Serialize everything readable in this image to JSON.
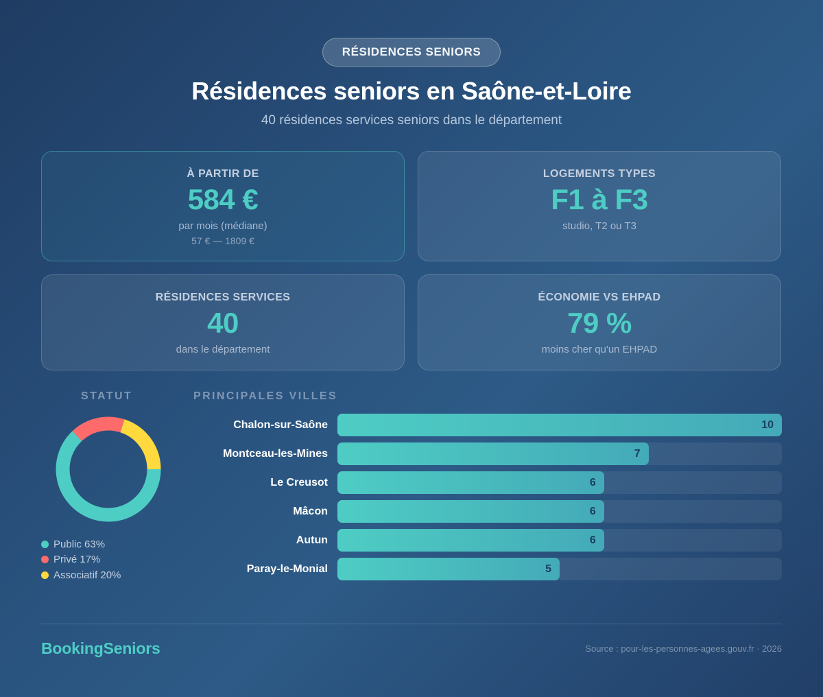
{
  "header": {
    "badge": "RÉSIDENCES SENIORS",
    "title": "Résidences seniors en Saône-et-Loire",
    "subtitle": "40 résidences services seniors dans le département"
  },
  "cards": [
    {
      "label": "À PARTIR DE",
      "value": "584 €",
      "sub": "par mois (médiane)",
      "sub2": "57 € — 1809 €"
    },
    {
      "label": "LOGEMENTS TYPES",
      "value": "F1 à F3",
      "sub": "studio, T2 ou T3"
    },
    {
      "label": "RÉSIDENCES SERVICES",
      "value": "40",
      "sub": "dans le département"
    },
    {
      "label": "ÉCONOMIE VS EHPAD",
      "value": "79 %",
      "sub": "moins cher qu'un EHPAD"
    }
  ],
  "statut": {
    "title": "STATUT",
    "legend": [
      {
        "label": "Public 63%",
        "color": "#4ecdc4"
      },
      {
        "label": "Privé 17%",
        "color": "#ff6b6b"
      },
      {
        "label": "Associatif 20%",
        "color": "#ffd93d"
      }
    ]
  },
  "villes": {
    "title": "PRINCIPALES VILLES",
    "rows": [
      {
        "city": "Chalon-sur-Saône",
        "value": "10"
      },
      {
        "city": "Montceau-les-Mines",
        "value": "7"
      },
      {
        "city": "Le Creusot",
        "value": "6"
      },
      {
        "city": "Mâcon",
        "value": "6"
      },
      {
        "city": "Autun",
        "value": "6"
      },
      {
        "city": "Paray-le-Monial",
        "value": "5"
      }
    ]
  },
  "footer": {
    "brand": "BookingSeniors",
    "source": "Source : pour-les-personnes-agees.gouv.fr · 2026"
  },
  "colors": {
    "accent": "#4ecdc4",
    "public": "#4ecdc4",
    "prive": "#ff6b6b",
    "associatif": "#ffd93d"
  },
  "chart_data": [
    {
      "type": "pie",
      "title": "STATUT",
      "categories": [
        "Public",
        "Privé",
        "Associatif"
      ],
      "values": [
        63,
        17,
        20
      ],
      "colors": [
        "#4ecdc4",
        "#ff6b6b",
        "#ffd93d"
      ],
      "legend_position": "bottom"
    },
    {
      "type": "bar",
      "orientation": "horizontal",
      "title": "PRINCIPALES VILLES",
      "categories": [
        "Chalon-sur-Saône",
        "Montceau-les-Mines",
        "Le Creusot",
        "Mâcon",
        "Autun",
        "Paray-le-Monial"
      ],
      "values": [
        10,
        7,
        6,
        6,
        6,
        5
      ],
      "xlim": [
        0,
        10
      ],
      "grid": false
    }
  ]
}
